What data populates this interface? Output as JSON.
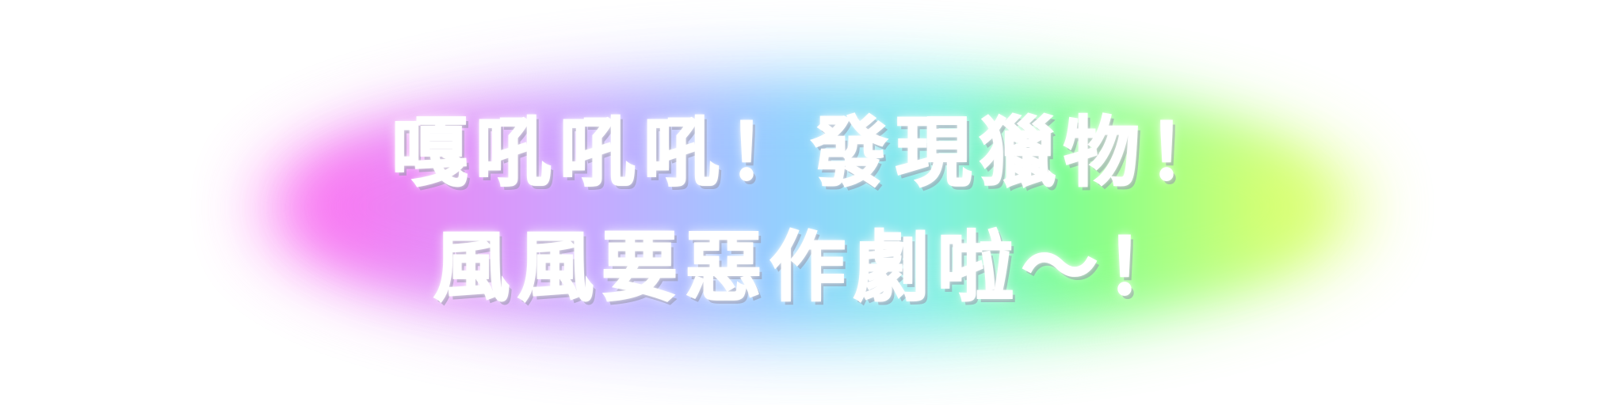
{
  "banner": {
    "line1": "嘎吼吼吼！發現獵物！",
    "line2": "風風要惡作劇啦～！"
  },
  "colors": {
    "background": "#ffffff",
    "text": "#ffffff",
    "glow_magenta": "#ff6ef0",
    "glow_violet": "#c9a6ff",
    "glow_blue": "#8fd0ff",
    "glow_cyan": "#7ff0e8",
    "glow_green": "#7dff8a",
    "glow_yellow": "#eaff6a"
  }
}
